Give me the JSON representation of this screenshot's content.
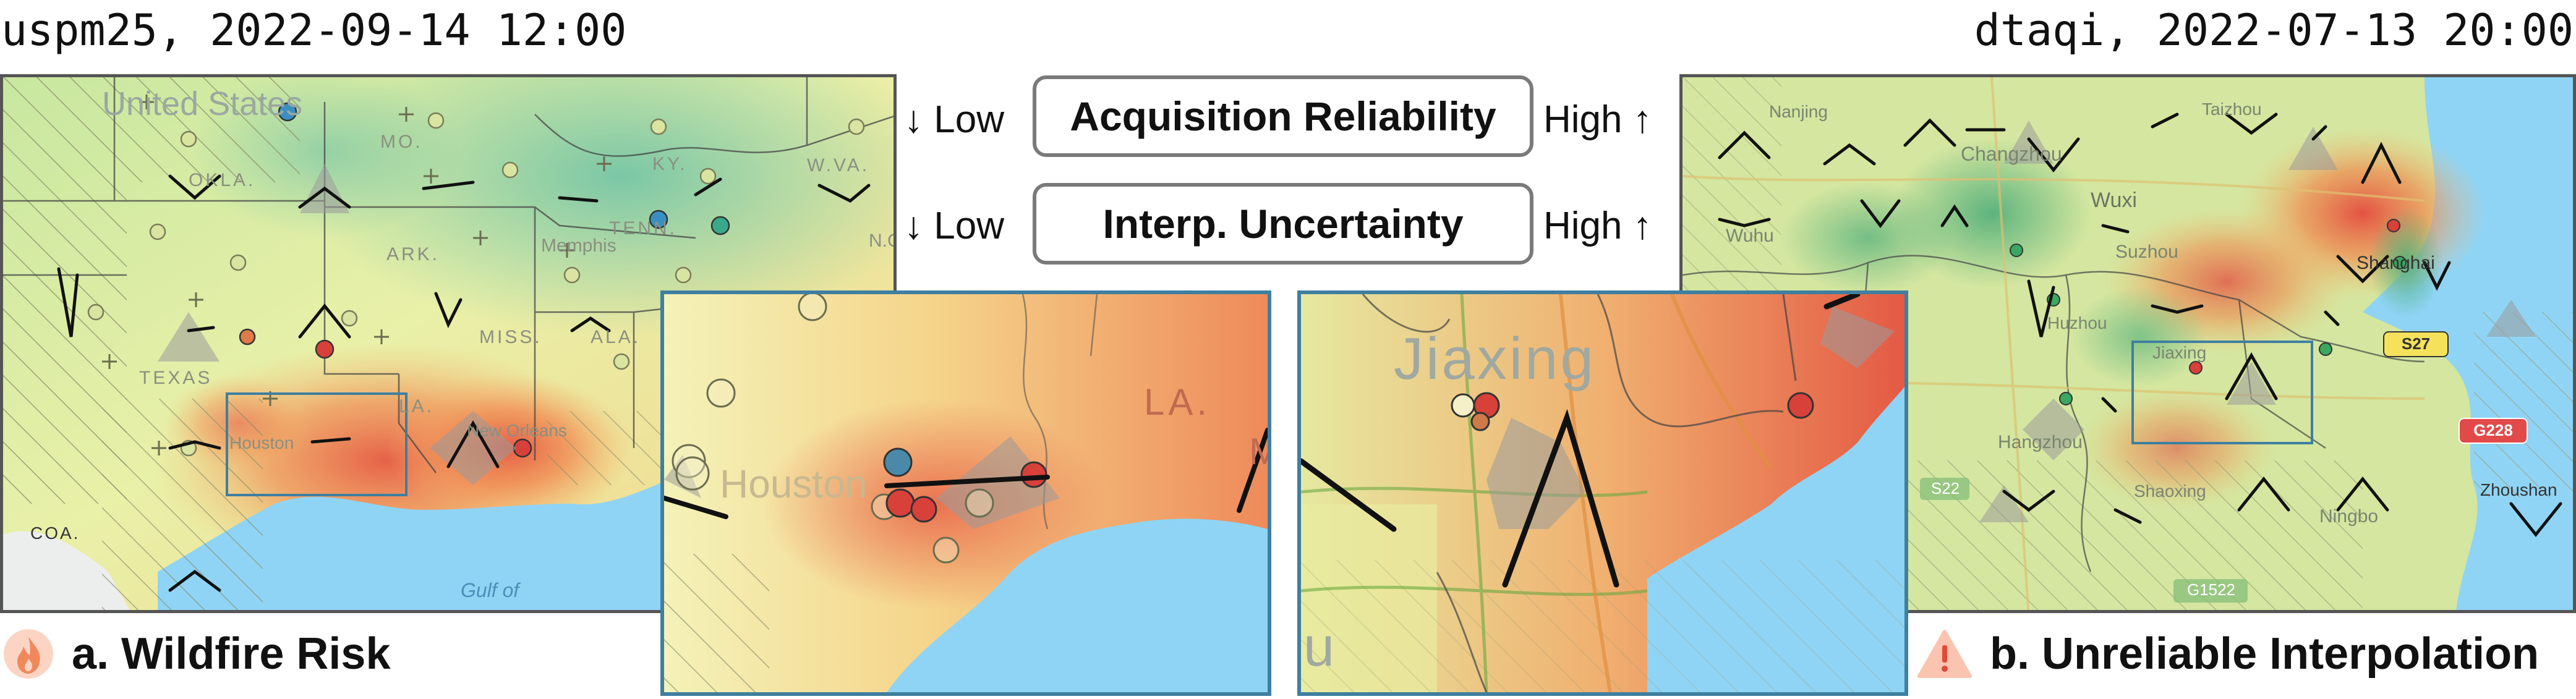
{
  "left_map": {
    "title": "uspm25, 2022-09-14 12:00",
    "labels": {
      "country": "United States",
      "mo": "MO.",
      "ky": "KY.",
      "wva": "W.VA.",
      "okla": "OKLA.",
      "ark": "ARK.",
      "tenn": "TENN.",
      "memphis": "Memphis",
      "nc": "N.C",
      "miss": "MISS.",
      "ala": "ALA.",
      "texas": "TEXAS",
      "la": "LA.",
      "houston": "Houston",
      "new_orleans": "New Orleans",
      "coa": "COA.",
      "gulf": "Gulf of"
    },
    "caption": "a. Wildfire Risk",
    "caption_icon": "fire-icon"
  },
  "right_map": {
    "title": "dtaqi, 2022-07-13 20:00",
    "labels": {
      "nanjing": "Nanjing",
      "taizhou": "Taizhou",
      "changzhou": "Changzhou",
      "wuxi": "Wuxi",
      "wuhu": "Wuhu",
      "suzhou": "Suzhou",
      "shanghai": "Shanghai",
      "huzhou": "Huzhou",
      "jiaxing": "Jiaxing",
      "hangzhou": "Hangzhou",
      "shaoxing": "Shaoxing",
      "ningbo": "Ningbo",
      "zhoushan": "Zhoushan",
      "road_s22": "S22",
      "road_g1522": "G1522",
      "road_g228": "G228",
      "road_s27": "S27"
    },
    "caption": "b. Unreliable Interpolation",
    "caption_icon": "warning-icon"
  },
  "zoom_left": {
    "labels": {
      "houston": "Houston",
      "la": "LA.",
      "m": "M"
    }
  },
  "zoom_right": {
    "labels": {
      "jiaxing": "Jiaxing",
      "u": "u"
    }
  },
  "legend": {
    "acquisition": {
      "label": "Acquisition Reliability",
      "low": "↓ Low",
      "high": "High ↑"
    },
    "uncertainty": {
      "label": "Interp. Uncertainty",
      "low": "↓ Low",
      "high": "High ↑"
    }
  },
  "colors": {
    "water": "#8fd4f5",
    "frame": "#3f7fa0",
    "high": "#e2504a",
    "mid": "#f2b25f",
    "low": "#8cc79a"
  }
}
